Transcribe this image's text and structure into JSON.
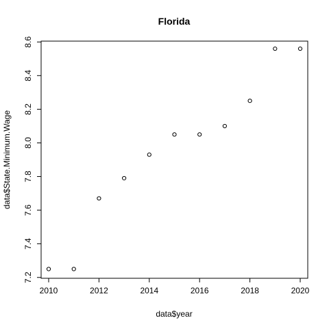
{
  "chart_data": {
    "type": "scatter",
    "title": "Florida",
    "xlabel": "data$year",
    "ylabel": "data$State.Minimum.Wage",
    "xlim": [
      2009.7,
      2020.3
    ],
    "ylim": [
      7.195,
      8.605
    ],
    "xticks": [
      2010,
      2012,
      2014,
      2016,
      2018,
      2020
    ],
    "yticks": [
      7.2,
      7.4,
      7.6,
      7.8,
      8.0,
      8.2,
      8.4,
      8.6
    ],
    "xtick_labels": [
      "2010",
      "2012",
      "2014",
      "2016",
      "2018",
      "2020"
    ],
    "ytick_labels": [
      "7.2",
      "7.4",
      "7.6",
      "7.8",
      "8.0",
      "8.2",
      "8.4",
      "8.6"
    ],
    "grid": false,
    "legend": "none",
    "marker": "open-circle",
    "color": "#000000",
    "x": [
      2010,
      2011,
      2012,
      2013,
      2014,
      2015,
      2016,
      2017,
      2018,
      2019,
      2020
    ],
    "y": [
      7.25,
      7.25,
      7.67,
      7.79,
      7.93,
      8.05,
      8.05,
      8.1,
      8.25,
      8.56,
      8.56
    ]
  }
}
